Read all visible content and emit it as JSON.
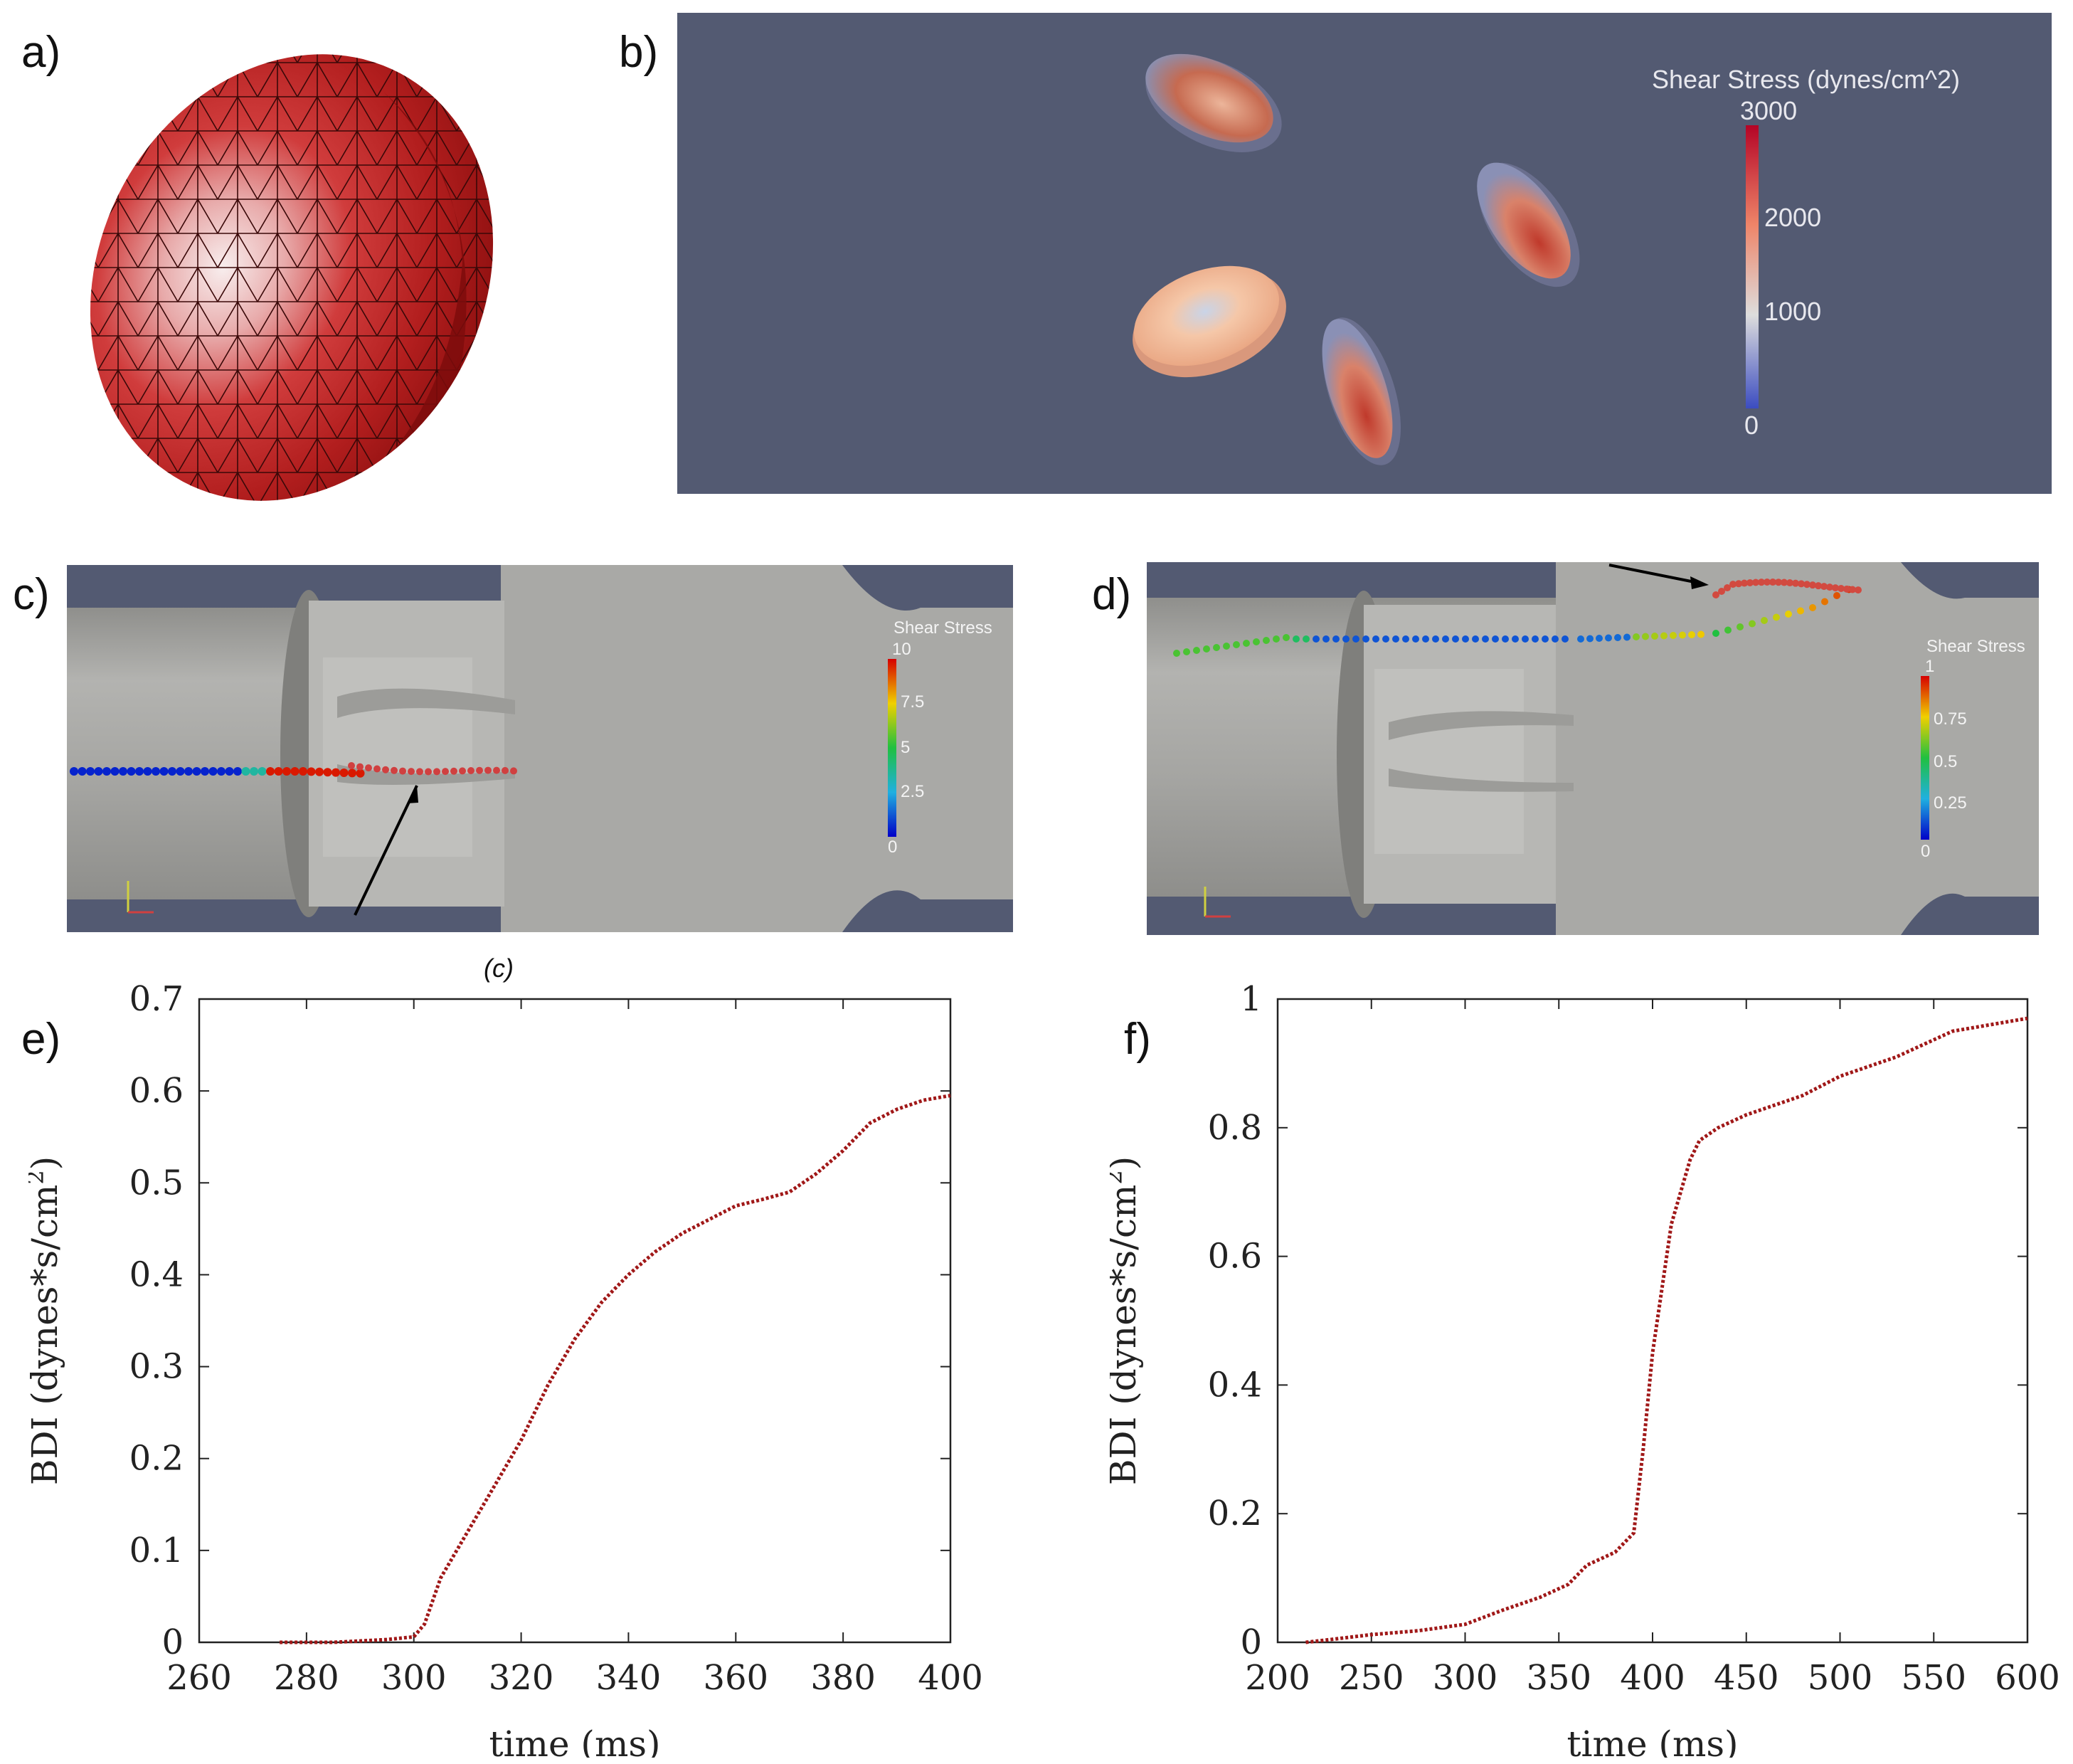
{
  "panels": {
    "a": {
      "label": "a)"
    },
    "b": {
      "label": "b)",
      "colorbar_title": "Shear Stress (dynes/cm^2)",
      "ticks": [
        "3000",
        "2000",
        "1000",
        "0"
      ],
      "background": "#535a72"
    },
    "c": {
      "label": "c)",
      "colorbar_title": "Shear Stress",
      "ticks": [
        "10",
        "7.5",
        "5",
        "2.5",
        "0"
      ],
      "caption": "(c)"
    },
    "d": {
      "label": "d)",
      "colorbar_title": "Shear Stress",
      "ticks": [
        "1",
        "0.75",
        "0.5",
        "0.25",
        "0"
      ]
    },
    "e": {
      "label": "e)"
    },
    "f": {
      "label": "f)"
    }
  },
  "colors": {
    "mesh_red": "#a81c1c",
    "curve": "#a01818",
    "viewport_bg": "#535a72"
  },
  "chart_data": [
    {
      "id": "e",
      "type": "line",
      "xlabel": "time (ms)",
      "ylabel": "BDI (dynes*s/cm",
      "xlim": [
        260,
        400
      ],
      "ylim": [
        0,
        0.7
      ],
      "xticks": [
        "260",
        "280",
        "300",
        "320",
        "340",
        "360",
        "380",
        "400"
      ],
      "yticks": [
        "0",
        "0.1",
        "0.2",
        "0.3",
        "0.4",
        "0.5",
        "0.6",
        "0.7"
      ],
      "series": [
        {
          "name": "BDI",
          "x": [
            275,
            285,
            295,
            300,
            302,
            305,
            310,
            315,
            320,
            325,
            330,
            335,
            340,
            345,
            350,
            355,
            360,
            365,
            370,
            375,
            380,
            385,
            390,
            395,
            400
          ],
          "y": [
            0,
            0,
            0.003,
            0.006,
            0.02,
            0.07,
            0.12,
            0.17,
            0.22,
            0.28,
            0.33,
            0.37,
            0.4,
            0.425,
            0.445,
            0.46,
            0.475,
            0.482,
            0.49,
            0.51,
            0.535,
            0.565,
            0.58,
            0.59,
            0.595
          ]
        }
      ]
    },
    {
      "id": "f",
      "type": "line",
      "xlabel": "time (ms)",
      "ylabel": "BDI (dynes*s/cm",
      "xlim": [
        200,
        600
      ],
      "ylim": [
        0,
        1
      ],
      "xticks": [
        "200",
        "250",
        "300",
        "350",
        "400",
        "450",
        "500",
        "550",
        "600"
      ],
      "yticks": [
        "0",
        "0.2",
        "0.4",
        "0.6",
        "0.8",
        "1"
      ],
      "series": [
        {
          "name": "BDI",
          "x": [
            215,
            230,
            250,
            275,
            300,
            320,
            340,
            355,
            365,
            380,
            390,
            395,
            400,
            405,
            410,
            415,
            420,
            425,
            435,
            450,
            480,
            500,
            530,
            560,
            600
          ],
          "y": [
            0,
            0.005,
            0.012,
            0.018,
            0.028,
            0.05,
            0.07,
            0.09,
            0.12,
            0.14,
            0.17,
            0.3,
            0.45,
            0.55,
            0.65,
            0.7,
            0.75,
            0.78,
            0.8,
            0.82,
            0.85,
            0.88,
            0.91,
            0.95,
            0.97
          ]
        }
      ]
    }
  ]
}
